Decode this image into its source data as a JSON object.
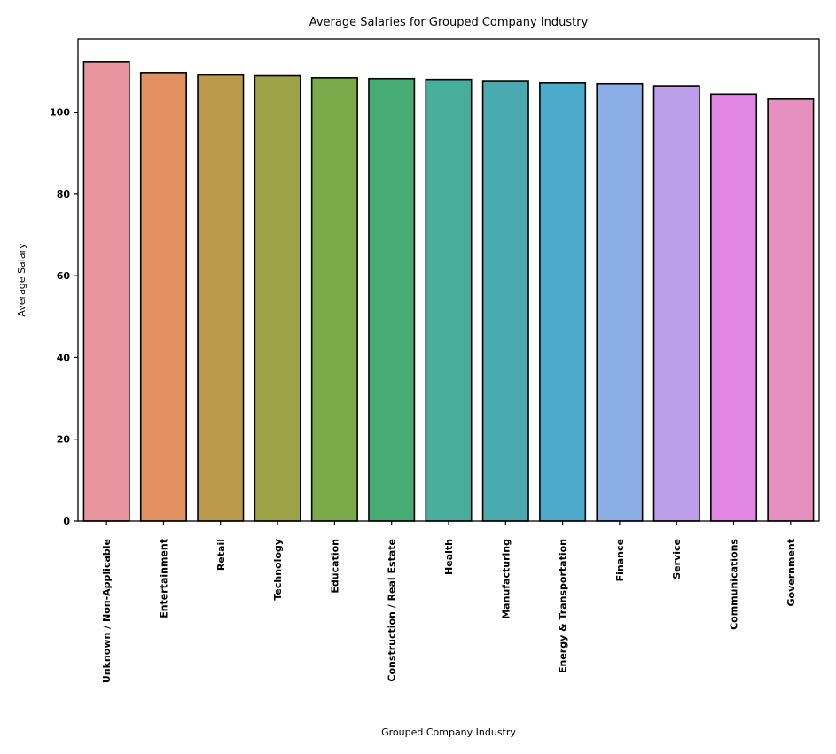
{
  "chart_data": {
    "type": "bar",
    "title": "Average Salaries for Grouped Company Industry",
    "xlabel": "Grouped Company Industry",
    "ylabel": "Average Salary",
    "categories": [
      "Unknown / Non-Applicable",
      "Entertainment",
      "Retail",
      "Technology",
      "Education",
      "Construction / Real Estate",
      "Health",
      "Manufacturing",
      "Energy & Transportation",
      "Finance",
      "Service",
      "Communications",
      "Government"
    ],
    "values": [
      112.3,
      109.7,
      109.1,
      108.9,
      108.4,
      108.2,
      108.0,
      107.7,
      107.1,
      106.9,
      106.4,
      104.4,
      103.2
    ],
    "colors": [
      "#e9959f",
      "#e49161",
      "#bc9a4c",
      "#9ea246",
      "#7baa4b",
      "#46ac74",
      "#48ad9b",
      "#49aab0",
      "#4eaacb",
      "#8caee6",
      "#bc9fe9",
      "#e387e4",
      "#e690c0"
    ],
    "yticks": [
      0,
      20,
      40,
      60,
      80,
      100
    ],
    "ylim": [
      0,
      117.9
    ],
    "grid": false,
    "legend": "none"
  }
}
